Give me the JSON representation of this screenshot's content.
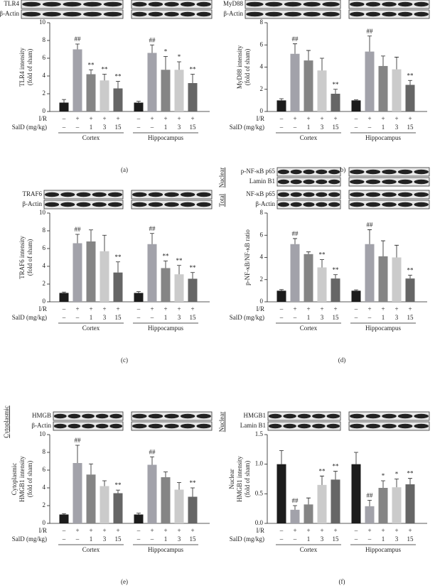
{
  "chart_data": [
    {
      "type": "bar",
      "panel_label": "(a)",
      "blots": [
        {
          "rows": [
            "TLR4",
            "β-Actin"
          ]
        }
      ],
      "ylabel": [
        "TLR4 intensity",
        "(fold of sham)"
      ],
      "ylim": [
        0,
        10
      ],
      "yticks": [
        0,
        2,
        4,
        6,
        8,
        10
      ],
      "groups": [
        "Cortex",
        "Hippocampus"
      ],
      "conditions": [
        {
          "label": "I/R",
          "values": [
            "–",
            "+",
            "+",
            "+",
            "+",
            "–",
            "+",
            "+",
            "+",
            "+"
          ]
        },
        {
          "label": "SalD (mg/kg)",
          "values": [
            "–",
            "–",
            "1",
            "3",
            "15",
            "–",
            "–",
            "1",
            "3",
            "15"
          ]
        }
      ],
      "values": [
        1.0,
        7.0,
        4.2,
        3.5,
        2.6,
        1.0,
        6.6,
        4.7,
        4.7,
        3.2
      ],
      "errors": [
        0.35,
        0.6,
        0.5,
        0.7,
        0.8,
        0.15,
        0.9,
        1.5,
        0.9,
        1.0
      ],
      "annotations": [
        null,
        "##",
        "**",
        "**",
        "**",
        null,
        "##",
        "*",
        "*",
        "**"
      ],
      "colors": [
        "#1c1c1c",
        "#a2a2aa",
        "#858585",
        "#cbcbcb",
        "#666666",
        "#1c1c1c",
        "#a2a2aa",
        "#858585",
        "#cbcbcb",
        "#666666"
      ]
    },
    {
      "type": "bar",
      "panel_label": "(b)",
      "blots": [
        {
          "rows": [
            "MyD88",
            "β-Actin"
          ]
        }
      ],
      "ylabel": [
        "MyD88 intensity",
        "(fold of sham)"
      ],
      "ylim": [
        0,
        8
      ],
      "yticks": [
        0,
        2,
        4,
        6,
        8
      ],
      "groups": [
        "Cortex",
        "Hippocampus"
      ],
      "conditions": [
        {
          "label": "I/R",
          "values": [
            "–",
            "+",
            "+",
            "+",
            "+",
            "–",
            "+",
            "+",
            "+",
            "+"
          ]
        },
        {
          "label": "SalD (mg/kg)",
          "values": [
            "–",
            "–",
            "1",
            "3",
            "15",
            "–",
            "–",
            "1",
            "3",
            "15"
          ]
        }
      ],
      "values": [
        1.0,
        5.2,
        4.6,
        3.7,
        1.6,
        1.0,
        5.4,
        4.1,
        3.8,
        2.4
      ],
      "errors": [
        0.15,
        0.9,
        0.9,
        1.1,
        0.4,
        0.05,
        1.4,
        0.9,
        1.1,
        0.4
      ],
      "annotations": [
        null,
        "##",
        null,
        null,
        "**",
        null,
        "##",
        null,
        null,
        "**"
      ],
      "colors": [
        "#1c1c1c",
        "#a2a2aa",
        "#858585",
        "#cbcbcb",
        "#666666",
        "#1c1c1c",
        "#a2a2aa",
        "#858585",
        "#cbcbcb",
        "#666666"
      ]
    },
    {
      "type": "bar",
      "panel_label": "(c)",
      "blots": [
        {
          "rows": [
            "TRAF6",
            "β-Actin"
          ]
        }
      ],
      "ylabel": [
        "TRAF6 intensity",
        "(fold of sham)"
      ],
      "ylim": [
        0,
        10
      ],
      "yticks": [
        0,
        2,
        4,
        6,
        8,
        10
      ],
      "groups": [
        "Cortex",
        "Hippocampus"
      ],
      "conditions": [
        {
          "label": "I/R",
          "values": [
            "–",
            "+",
            "+",
            "+",
            "+",
            "–",
            "+",
            "+",
            "+",
            "+"
          ]
        },
        {
          "label": "SalD (mg/kg)",
          "values": [
            "–",
            "–",
            "1",
            "3",
            "15",
            "–",
            "–",
            "1",
            "3",
            "15"
          ]
        }
      ],
      "values": [
        1.0,
        6.6,
        6.8,
        5.7,
        3.3,
        1.0,
        6.5,
        3.8,
        3.1,
        2.6
      ],
      "errors": [
        0.1,
        1.0,
        1.3,
        1.8,
        1.2,
        0.15,
        1.2,
        0.8,
        1.0,
        0.7
      ],
      "annotations": [
        null,
        "##",
        null,
        null,
        "**",
        null,
        "##",
        "**",
        "**",
        "**"
      ],
      "colors": [
        "#1c1c1c",
        "#a2a2aa",
        "#858585",
        "#cbcbcb",
        "#666666",
        "#1c1c1c",
        "#a2a2aa",
        "#858585",
        "#cbcbcb",
        "#666666"
      ]
    },
    {
      "type": "bar",
      "panel_label": "(d)",
      "blots": [
        {
          "side": "Nuclear",
          "rows": [
            "p-NF-κB p65",
            "Lamin B1"
          ]
        },
        {
          "side": "Total",
          "rows": [
            "NF-κB p65",
            "β-Actin"
          ]
        }
      ],
      "ylabel": [
        "p-NF-κB/NF-κB ratio"
      ],
      "ylim": [
        0,
        8
      ],
      "yticks": [
        0,
        2,
        4,
        6,
        8
      ],
      "groups": [
        "Cortex",
        "Hippocampus"
      ],
      "conditions": [
        {
          "label": "I/R",
          "values": [
            "–",
            "+",
            "+",
            "+",
            "+",
            "–",
            "+",
            "+",
            "+",
            "+"
          ]
        },
        {
          "label": "SalD (mg/kg)",
          "values": [
            "–",
            "–",
            "1",
            "3",
            "15",
            "–",
            "–",
            "1",
            "3",
            "15"
          ]
        }
      ],
      "values": [
        1.0,
        5.2,
        4.3,
        3.1,
        2.1,
        1.0,
        5.2,
        4.1,
        4.0,
        2.1
      ],
      "errors": [
        0.1,
        0.5,
        0.2,
        0.7,
        0.35,
        0.08,
        1.3,
        1.4,
        1.1,
        0.3
      ],
      "annotations": [
        null,
        "##",
        null,
        "**",
        "**",
        null,
        "##",
        null,
        null,
        "**"
      ],
      "colors": [
        "#1c1c1c",
        "#a2a2aa",
        "#858585",
        "#cbcbcb",
        "#666666",
        "#1c1c1c",
        "#a2a2aa",
        "#858585",
        "#cbcbcb",
        "#666666"
      ]
    },
    {
      "type": "bar",
      "panel_label": "(e)",
      "blots": [
        {
          "side": "Cytoplasmic",
          "rows": [
            "HMGB",
            "β-Actin"
          ]
        }
      ],
      "ylabel": [
        "Cytoplasmic",
        "HMGB1 intensity",
        "(fold of sham)"
      ],
      "ylim": [
        0,
        10
      ],
      "yticks": [
        0,
        2,
        4,
        6,
        8,
        10
      ],
      "groups": [
        "Cortex",
        "Hippocampus"
      ],
      "conditions": [
        {
          "label": "I/R",
          "values": [
            "–",
            "+",
            "+",
            "+",
            "+",
            "–",
            "+",
            "+",
            "+",
            "+"
          ]
        },
        {
          "label": "SalD (mg/kg)",
          "values": [
            "–",
            "–",
            "1",
            "3",
            "15",
            "–",
            "–",
            "1",
            "3",
            "15"
          ]
        }
      ],
      "values": [
        1.0,
        6.8,
        5.5,
        4.2,
        3.4,
        1.0,
        6.6,
        5.2,
        3.8,
        3.0
      ],
      "errors": [
        0.1,
        2.0,
        1.2,
        0.6,
        0.35,
        0.15,
        0.9,
        0.6,
        0.8,
        1.0
      ],
      "annotations": [
        null,
        "##",
        null,
        null,
        "**",
        null,
        "##",
        null,
        null,
        "**"
      ],
      "colors": [
        "#1c1c1c",
        "#a2a2aa",
        "#858585",
        "#cbcbcb",
        "#666666",
        "#1c1c1c",
        "#a2a2aa",
        "#858585",
        "#cbcbcb",
        "#666666"
      ]
    },
    {
      "type": "bar",
      "panel_label": "(f)",
      "blots": [
        {
          "side": "Nuclear",
          "rows": [
            "HMGB1",
            "Lamin B1"
          ]
        }
      ],
      "ylabel": [
        "Nuclear",
        "HMGB1 intensity",
        "(fold of sham)"
      ],
      "ylim": [
        0,
        1.5
      ],
      "yticks": [
        {
          "value": 0,
          "label": "0.0"
        },
        0.5,
        {
          "value": 1,
          "label": "1.0"
        },
        1.5
      ],
      "groups": [
        "Cortex",
        "Hippocampus"
      ],
      "conditions": [
        {
          "label": "I/R",
          "values": [
            "–",
            "+",
            "+",
            "+",
            "+",
            "–",
            "+",
            "+",
            "+",
            "+"
          ]
        },
        {
          "label": "SalD (mg/kg)",
          "values": [
            "–",
            "–",
            "1",
            "3",
            "15",
            "–",
            "–",
            "1",
            "3",
            "15"
          ]
        }
      ],
      "values": [
        1.0,
        0.23,
        0.32,
        0.65,
        0.74,
        1.0,
        0.29,
        0.6,
        0.61,
        0.66
      ],
      "errors": [
        0.23,
        0.07,
        0.11,
        0.15,
        0.14,
        0.2,
        0.1,
        0.12,
        0.14,
        0.1
      ],
      "annotations": [
        null,
        "##",
        null,
        "**",
        "**",
        null,
        "##",
        "*",
        "*",
        "**"
      ],
      "colors": [
        "#1c1c1c",
        "#a2a2aa",
        "#858585",
        "#cbcbcb",
        "#666666",
        "#1c1c1c",
        "#a2a2aa",
        "#858585",
        "#cbcbcb",
        "#666666"
      ]
    }
  ]
}
